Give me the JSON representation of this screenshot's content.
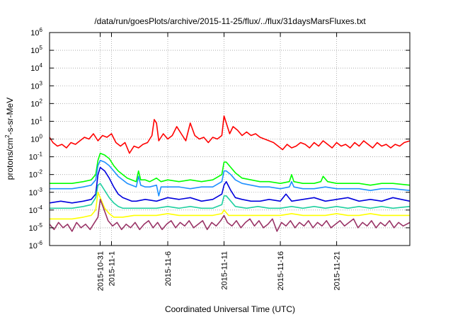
{
  "chart_data": {
    "type": "line",
    "title": "/data/run/goesPlots/archive/2015-11-25/flux/../flux/31daysMarsFluxes.txt",
    "xlabel": "Coordinated Universal Time (UTC)",
    "ylabel_base": "protons/cm",
    "ylabel_sup": "2",
    "ylabel_rest": "-s-sr-MeV",
    "yscale": "log",
    "ylim_exp": [
      -6,
      6
    ],
    "y_tick_base": "10",
    "y_tick_exponents": [
      "-6",
      "-5",
      "-4",
      "-3",
      "-2",
      "-1",
      "0",
      "1",
      "2",
      "3",
      "4",
      "5",
      "6"
    ],
    "xlim_days": [
      -4.5,
      27.5
    ],
    "x_ticks": [
      {
        "day": 0,
        "label": "2015-10-31"
      },
      {
        "day": 1,
        "label": "2015-11-1"
      },
      {
        "day": 6,
        "label": "2015-11-6"
      },
      {
        "day": 11,
        "label": "2015-11-11"
      },
      {
        "day": 16,
        "label": "2015-11-16"
      },
      {
        "day": 21,
        "label": "2015-11-21"
      }
    ],
    "grid": true,
    "series": [
      {
        "color": "#ff0000",
        "x": [
          -4.5,
          -4.2,
          -3.8,
          -3.4,
          -3.0,
          -2.6,
          -2.2,
          -1.8,
          -1.4,
          -1.0,
          -0.6,
          -0.2,
          0.2,
          0.6,
          1.0,
          1.4,
          1.8,
          2.2,
          2.6,
          3.0,
          3.4,
          3.8,
          4.2,
          4.6,
          4.8,
          5.0,
          5.2,
          5.6,
          6.0,
          6.4,
          6.8,
          7.2,
          7.6,
          8.0,
          8.4,
          8.8,
          9.2,
          9.6,
          10.0,
          10.4,
          10.8,
          11.0,
          11.2,
          11.5,
          11.8,
          12.2,
          12.6,
          13.0,
          13.4,
          13.8,
          14.2,
          14.6,
          15.0,
          15.4,
          15.8,
          16.2,
          16.6,
          17.0,
          17.4,
          17.8,
          18.2,
          18.6,
          19.0,
          19.4,
          19.8,
          20.2,
          20.6,
          21.0,
          21.4,
          21.8,
          22.2,
          22.6,
          23.0,
          23.4,
          23.8,
          24.2,
          24.6,
          25.0,
          25.4,
          25.8,
          26.2,
          26.6,
          27.0,
          27.5
        ],
        "y_exp": [
          0.1,
          -0.2,
          -0.4,
          -0.3,
          -0.5,
          -0.2,
          -0.3,
          -0.1,
          0.1,
          0.0,
          0.3,
          -0.1,
          0.2,
          0.1,
          0.3,
          -0.2,
          -0.4,
          -0.2,
          -0.8,
          -0.4,
          -0.5,
          -0.3,
          -0.2,
          0.2,
          1.1,
          0.9,
          -0.1,
          0.3,
          0.0,
          0.2,
          0.7,
          0.3,
          -0.1,
          0.9,
          0.2,
          0.0,
          0.1,
          -0.2,
          0.1,
          0.0,
          0.2,
          1.3,
          0.9,
          0.3,
          0.7,
          0.5,
          0.2,
          0.4,
          0.2,
          0.3,
          0.1,
          0.0,
          -0.1,
          -0.2,
          -0.4,
          -0.6,
          -0.3,
          -0.5,
          -0.4,
          -0.2,
          -0.3,
          -0.5,
          -0.2,
          -0.4,
          -0.1,
          -0.3,
          -0.5,
          -0.2,
          -0.4,
          -0.3,
          -0.5,
          -0.2,
          -0.4,
          -0.1,
          -0.3,
          -0.5,
          -0.2,
          -0.4,
          -0.3,
          -0.5,
          -0.3,
          -0.4,
          -0.2,
          -0.1
        ]
      },
      {
        "color": "#00ff00",
        "x": [
          -4.5,
          -3.5,
          -2.5,
          -1.5,
          -0.8,
          -0.4,
          -0.2,
          0.0,
          0.4,
          0.8,
          1.2,
          1.6,
          2.0,
          2.4,
          2.8,
          3.2,
          3.4,
          3.6,
          4.0,
          4.4,
          5.0,
          5.4,
          6.0,
          7.0,
          8.0,
          9.0,
          10.0,
          10.8,
          11.0,
          11.2,
          11.6,
          12.0,
          12.6,
          13.4,
          14.2,
          15.0,
          16.0,
          16.8,
          17.0,
          17.2,
          18.0,
          19.0,
          19.6,
          19.8,
          20.2,
          21.0,
          22.0,
          23.0,
          24.0,
          25.0,
          26.0,
          27.5
        ],
        "y_exp": [
          -2.5,
          -2.5,
          -2.5,
          -2.4,
          -2.3,
          -2.0,
          -1.2,
          -0.8,
          -0.9,
          -1.1,
          -1.5,
          -1.8,
          -2.0,
          -2.2,
          -2.3,
          -2.4,
          -1.8,
          -2.3,
          -2.3,
          -2.4,
          -2.2,
          -2.4,
          -2.3,
          -2.4,
          -2.3,
          -2.4,
          -2.3,
          -2.0,
          -1.3,
          -1.3,
          -1.6,
          -1.9,
          -2.2,
          -2.3,
          -2.4,
          -2.4,
          -2.5,
          -2.4,
          -2.0,
          -2.4,
          -2.5,
          -2.5,
          -2.4,
          -2.1,
          -2.4,
          -2.5,
          -2.5,
          -2.5,
          -2.6,
          -2.5,
          -2.5,
          -2.6
        ]
      },
      {
        "color": "#1e90ff",
        "x": [
          -4.5,
          -3.5,
          -2.5,
          -1.5,
          -0.8,
          -0.4,
          -0.2,
          0.0,
          0.4,
          0.8,
          1.2,
          1.6,
          2.0,
          2.4,
          2.8,
          3.2,
          3.4,
          3.6,
          4.0,
          4.4,
          5.0,
          5.2,
          5.4,
          6.0,
          7.0,
          8.0,
          9.0,
          10.0,
          10.8,
          11.0,
          11.2,
          11.6,
          12.0,
          12.6,
          13.4,
          14.2,
          15.0,
          16.0,
          16.8,
          17.0,
          17.2,
          18.0,
          19.0,
          20.0,
          21.0,
          22.0,
          23.0,
          24.0,
          25.0,
          26.0,
          27.5
        ],
        "y_exp": [
          -2.8,
          -2.8,
          -2.8,
          -2.7,
          -2.6,
          -2.3,
          -1.5,
          -1.2,
          -1.3,
          -1.5,
          -1.8,
          -2.1,
          -2.3,
          -2.5,
          -2.6,
          -2.7,
          -2.1,
          -2.6,
          -2.7,
          -2.7,
          -2.6,
          -3.2,
          -2.7,
          -2.7,
          -2.7,
          -2.8,
          -2.7,
          -2.7,
          -2.4,
          -1.8,
          -1.8,
          -2.0,
          -2.3,
          -2.5,
          -2.6,
          -2.7,
          -2.7,
          -2.8,
          -2.7,
          -2.4,
          -2.7,
          -2.8,
          -2.8,
          -2.7,
          -2.8,
          -2.8,
          -2.8,
          -2.9,
          -2.8,
          -2.8,
          -2.9
        ]
      },
      {
        "color": "#0000dd",
        "x": [
          -4.5,
          -3.5,
          -2.5,
          -1.5,
          -0.8,
          -0.4,
          -0.2,
          0.0,
          0.4,
          0.8,
          1.2,
          1.6,
          2.0,
          2.4,
          2.8,
          3.2,
          4.0,
          5.0,
          6.0,
          7.0,
          8.0,
          9.0,
          10.0,
          10.8,
          11.0,
          11.2,
          11.6,
          12.0,
          12.6,
          13.4,
          14.2,
          15.0,
          16.0,
          16.5,
          17.0,
          18.0,
          19.0,
          20.0,
          21.0,
          22.0,
          23.0,
          24.0,
          25.0,
          26.0,
          27.5
        ],
        "y_exp": [
          -3.6,
          -3.5,
          -3.6,
          -3.5,
          -3.4,
          -3.1,
          -2.0,
          -1.6,
          -1.8,
          -2.2,
          -2.7,
          -3.1,
          -3.3,
          -3.4,
          -3.5,
          -3.5,
          -3.4,
          -3.5,
          -3.3,
          -3.4,
          -3.3,
          -3.5,
          -3.4,
          -3.1,
          -2.6,
          -2.4,
          -2.9,
          -3.3,
          -3.4,
          -3.5,
          -3.5,
          -3.4,
          -3.5,
          -3.1,
          -3.5,
          -3.4,
          -3.3,
          -3.5,
          -3.4,
          -3.3,
          -3.5,
          -3.4,
          -3.5,
          -3.3,
          -3.5
        ]
      },
      {
        "color": "#20d0a0",
        "x": [
          -4.5,
          -3.5,
          -2.5,
          -1.5,
          -0.8,
          -0.4,
          -0.2,
          0.0,
          0.4,
          0.8,
          1.2,
          1.6,
          2.0,
          3.0,
          4.0,
          5.0,
          6.0,
          7.0,
          8.0,
          9.0,
          10.0,
          10.8,
          11.0,
          11.2,
          11.6,
          12.0,
          13.0,
          14.0,
          15.0,
          16.0,
          17.0,
          18.0,
          19.0,
          20.0,
          21.0,
          22.0,
          23.0,
          24.0,
          25.0,
          26.0,
          27.5
        ],
        "y_exp": [
          -3.9,
          -3.9,
          -3.9,
          -3.8,
          -3.7,
          -3.3,
          -2.6,
          -2.5,
          -2.9,
          -3.3,
          -3.6,
          -3.8,
          -3.9,
          -3.9,
          -3.9,
          -3.9,
          -3.8,
          -3.9,
          -3.8,
          -3.9,
          -3.9,
          -3.7,
          -3.2,
          -3.2,
          -3.5,
          -3.8,
          -3.9,
          -3.8,
          -3.9,
          -3.9,
          -3.8,
          -3.9,
          -3.8,
          -3.9,
          -3.8,
          -3.9,
          -3.8,
          -3.9,
          -3.8,
          -3.9,
          -3.8
        ]
      },
      {
        "color": "#ffff00",
        "x": [
          -4.5,
          -3.5,
          -2.5,
          -1.5,
          -0.8,
          -0.4,
          -0.2,
          0.0,
          0.4,
          0.8,
          1.2,
          1.6,
          2.0,
          3.0,
          4.0,
          5.0,
          6.0,
          7.0,
          8.0,
          9.0,
          10.0,
          10.8,
          11.0,
          11.4,
          12.0,
          13.0,
          14.0,
          15.0,
          16.0,
          17.0,
          18.0,
          19.0,
          20.0,
          21.0,
          22.0,
          23.0,
          24.0,
          25.0,
          26.0,
          27.5
        ],
        "y_exp": [
          -4.5,
          -4.5,
          -4.5,
          -4.4,
          -4.3,
          -4.0,
          -3.0,
          -3.3,
          -3.9,
          -4.2,
          -4.4,
          -4.4,
          -4.4,
          -4.3,
          -4.3,
          -4.3,
          -4.2,
          -4.3,
          -4.3,
          -4.3,
          -4.3,
          -4.2,
          -4.0,
          -4.3,
          -4.3,
          -4.3,
          -4.3,
          -4.3,
          -4.3,
          -4.2,
          -4.3,
          -4.3,
          -4.3,
          -4.2,
          -4.3,
          -4.3,
          -4.2,
          -4.3,
          -4.3,
          -4.3
        ]
      },
      {
        "color": "#993366",
        "x": [
          -4.5,
          -4.1,
          -3.7,
          -3.3,
          -2.9,
          -2.5,
          -2.1,
          -1.7,
          -1.3,
          -0.9,
          -0.5,
          -0.2,
          0.0,
          0.3,
          0.7,
          1.1,
          1.5,
          1.9,
          2.3,
          2.7,
          3.1,
          3.5,
          3.9,
          4.3,
          4.7,
          5.1,
          5.5,
          5.9,
          6.3,
          6.7,
          7.1,
          7.5,
          7.9,
          8.3,
          8.7,
          9.1,
          9.5,
          9.9,
          10.3,
          10.7,
          11.0,
          11.3,
          11.7,
          12.1,
          12.5,
          12.9,
          13.3,
          13.7,
          14.1,
          14.5,
          14.9,
          15.3,
          15.7,
          16.1,
          16.5,
          16.9,
          17.3,
          17.7,
          18.1,
          18.5,
          18.9,
          19.3,
          19.7,
          20.1,
          20.5,
          20.9,
          21.3,
          21.7,
          22.1,
          22.5,
          22.9,
          23.3,
          23.7,
          24.1,
          24.5,
          24.9,
          25.3,
          25.7,
          26.1,
          26.5,
          26.9,
          27.5
        ],
        "y_exp": [
          -4.8,
          -5.1,
          -4.7,
          -5.0,
          -4.8,
          -5.2,
          -4.7,
          -5.0,
          -4.8,
          -5.1,
          -4.7,
          -4.4,
          -3.4,
          -3.9,
          -4.6,
          -4.9,
          -4.7,
          -5.1,
          -4.8,
          -5.0,
          -4.7,
          -5.1,
          -4.8,
          -4.6,
          -5.0,
          -4.7,
          -5.1,
          -4.8,
          -4.6,
          -5.0,
          -4.7,
          -4.9,
          -4.6,
          -5.0,
          -4.8,
          -4.6,
          -5.1,
          -4.7,
          -4.9,
          -4.6,
          -4.3,
          -4.7,
          -4.9,
          -4.6,
          -5.0,
          -4.7,
          -4.5,
          -4.9,
          -4.6,
          -5.0,
          -4.8,
          -4.5,
          -5.2,
          -4.7,
          -4.9,
          -4.6,
          -5.0,
          -4.7,
          -4.9,
          -4.6,
          -5.0,
          -4.7,
          -4.9,
          -4.6,
          -5.0,
          -4.8,
          -4.6,
          -4.9,
          -4.7,
          -4.5,
          -5.0,
          -4.7,
          -4.9,
          -4.6,
          -5.0,
          -4.7,
          -4.9,
          -4.6,
          -5.0,
          -4.7,
          -4.9,
          -4.7
        ]
      }
    ]
  }
}
